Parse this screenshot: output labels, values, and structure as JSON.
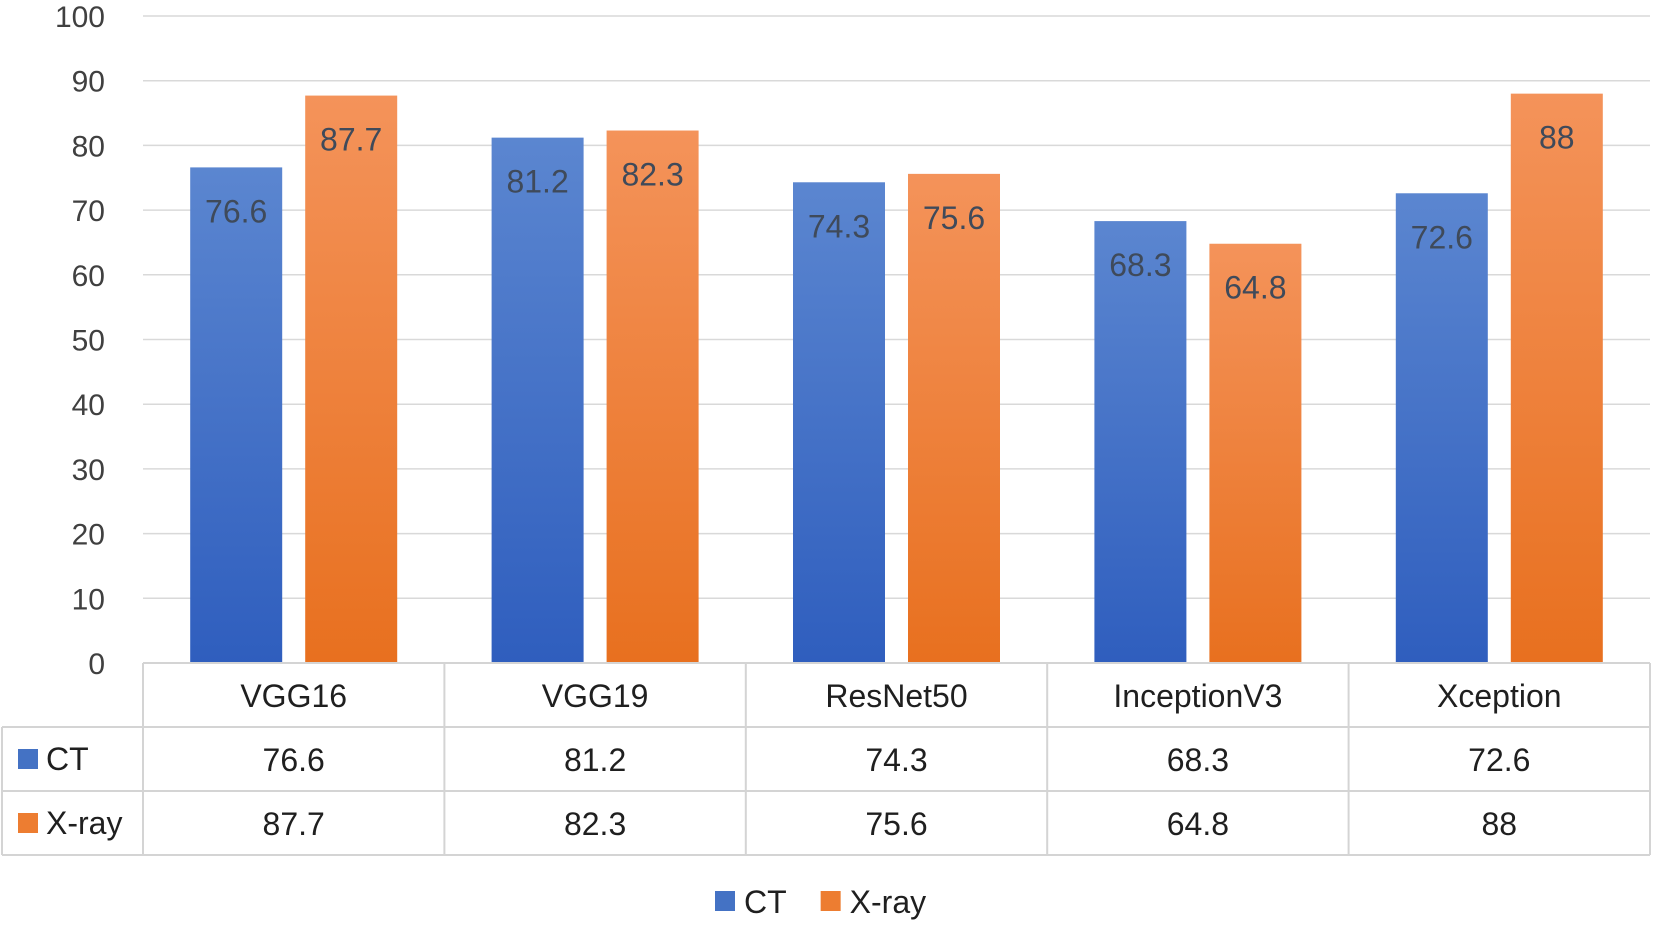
{
  "chart_data": {
    "type": "bar",
    "categories": [
      "VGG16",
      "VGG19",
      "ResNet50",
      "InceptionV3",
      "Xception"
    ],
    "series": [
      {
        "name": "CT",
        "color": "#4472C4",
        "values": [
          76.6,
          81.2,
          74.3,
          68.3,
          72.6
        ]
      },
      {
        "name": "X-ray",
        "color": "#ED7D31",
        "values": [
          87.7,
          82.3,
          75.6,
          64.8,
          88
        ]
      }
    ],
    "ylim": [
      0,
      100
    ],
    "yticks": [
      0,
      10,
      20,
      30,
      40,
      50,
      60,
      70,
      80,
      90,
      100
    ],
    "grid": true,
    "data_table": true,
    "legend": "bottom-center"
  }
}
